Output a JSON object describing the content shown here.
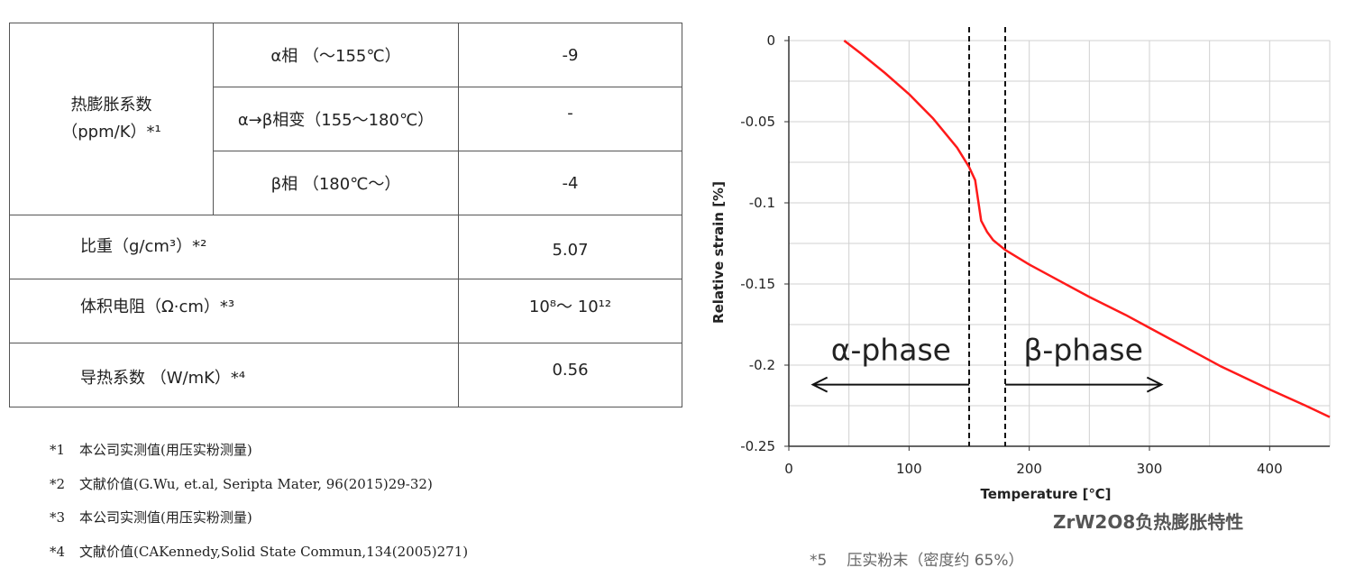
{
  "table": {
    "thermal_expansion_label": [
      "热膨胀系数",
      "（ppm/K）*¹"
    ],
    "phases": [
      {
        "label": "α相 （～155℃）",
        "value": "-9"
      },
      {
        "label": "α→β相变（155～180℃）",
        "value": "-"
      },
      {
        "label": "β相 （180℃～）",
        "value": "-4"
      }
    ],
    "rows": [
      {
        "label": "比重（g/cm³）*²",
        "value": "5.07"
      },
      {
        "label": "体积电阻（Ω·cm）*³",
        "value": "10⁸～ 10¹²"
      },
      {
        "label": "导热系数 （W/mK）*⁴",
        "value": "0.56"
      }
    ]
  },
  "footnotes": [
    {
      "mark": "*1",
      "text": "本公司实测值(用压实粉测量)"
    },
    {
      "mark": "*2",
      "text": "文献价值(G.Wu, et.al, Seripta Mater, 96(2015)29-32)"
    },
    {
      "mark": "*3",
      "text": "本公司实测值(用压实粉测量)"
    },
    {
      "mark": "*4",
      "text": "文献价值(CAKennedy,Solid State Commun,134(2005)271)"
    }
  ],
  "chart_title": "ZrW2O8负热膨胀特性",
  "chart_note": {
    "mark": "*5",
    "text": "压实粉末（密度约 65%）"
  },
  "colors": {
    "curve": "#ff1a1a",
    "grid": "#d0d0d0",
    "axis": "#333333",
    "text": "#222222"
  },
  "chart_data": {
    "type": "line",
    "title": "",
    "xlabel": "Temperature [℃]",
    "ylabel": "Relative strain [%]",
    "xlim": [
      0,
      450
    ],
    "ylim": [
      -0.25,
      0
    ],
    "xticks": [
      0,
      100,
      200,
      300,
      400
    ],
    "yticks": [
      0,
      -0.05,
      -0.1,
      -0.15,
      -0.2,
      -0.25
    ],
    "ytick_labels": [
      "0",
      "-0.05",
      "-0.1",
      "-0.15",
      "-0.2",
      "-0.25"
    ],
    "grid": true,
    "series": [
      {
        "x": [
          46,
          60,
          80,
          100,
          120,
          140,
          150,
          155,
          160,
          165,
          170,
          175,
          180,
          200,
          220,
          250,
          280,
          300,
          330,
          360,
          400,
          430,
          450
        ],
        "y": [
          0.0,
          -0.008,
          -0.02,
          -0.033,
          -0.048,
          -0.066,
          -0.078,
          -0.086,
          -0.111,
          -0.118,
          -0.123,
          -0.126,
          -0.129,
          -0.138,
          -0.146,
          -0.158,
          -0.169,
          -0.177,
          -0.189,
          -0.201,
          -0.215,
          -0.225,
          -0.232
        ]
      }
    ],
    "vlines": [
      150,
      180
    ],
    "annotations": [
      {
        "text": "α-phase",
        "arrow_from": 150,
        "arrow_to": 20
      },
      {
        "text": "β-phase",
        "arrow_from": 180,
        "arrow_to": 310
      }
    ]
  }
}
